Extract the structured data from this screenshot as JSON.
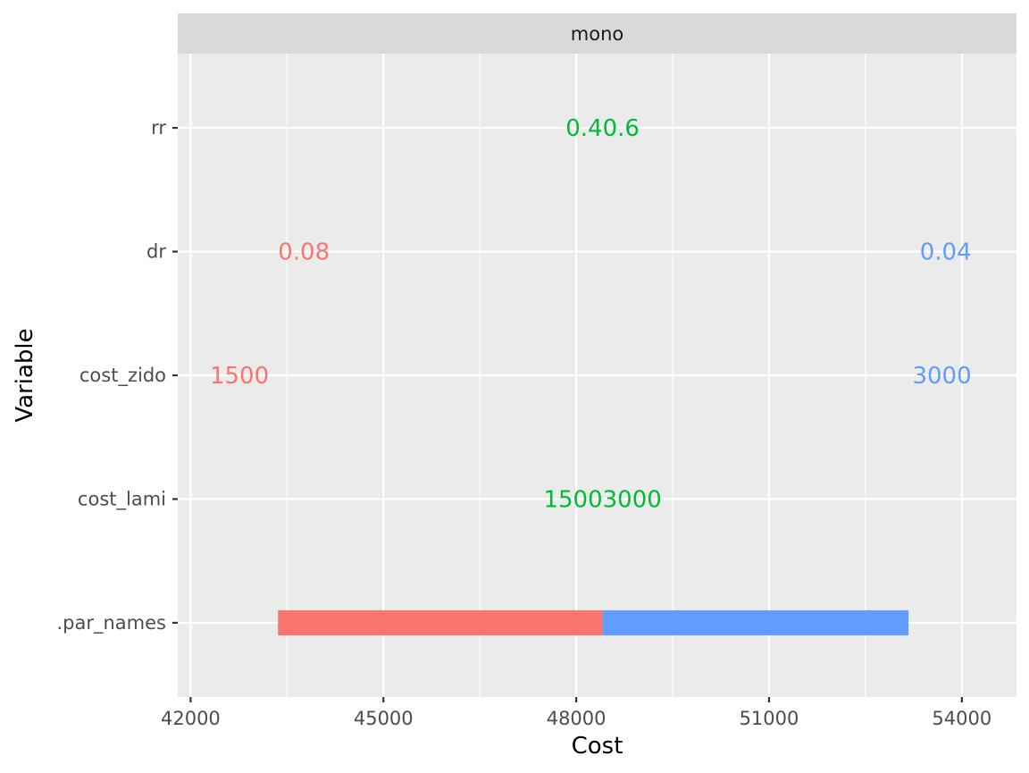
{
  "chart_data": {
    "type": "bar",
    "orientation": "horizontal",
    "facet": "mono",
    "xlabel": "Cost",
    "ylabel": "Variable",
    "xlim": [
      41800,
      54850
    ],
    "x_ticks": [
      42000,
      45000,
      48000,
      51000,
      54000
    ],
    "x_tick_labels": [
      "42000",
      "45000",
      "48000",
      "51000",
      "54000"
    ],
    "categories": [
      ".par_names",
      "cost_lami",
      "cost_zido",
      "dr",
      "rr"
    ],
    "grid": true,
    "legend": "none",
    "baseline": 48410,
    "colors": {
      "low": "#F8766D",
      "high": "#619CFF",
      "same": "#00BA38"
    },
    "bars": [
      {
        "category": ".par_names",
        "from": 43360,
        "to": 48410,
        "color": "#F8766D"
      },
      {
        "category": ".par_names",
        "from": 48410,
        "to": 53170,
        "color": "#619CFF"
      }
    ],
    "labels": [
      {
        "category": "rr",
        "text": "0.40.6",
        "x": 48410,
        "color": "#00BA38"
      },
      {
        "category": "dr",
        "text": "0.08",
        "x": 43360,
        "color": "#F8766D",
        "anchor": "start"
      },
      {
        "category": "dr",
        "text": "0.04",
        "x": 54150,
        "color": "#619CFF",
        "anchor": "end"
      },
      {
        "category": "cost_zido",
        "text": "1500",
        "x": 42300,
        "color": "#F8766D",
        "anchor": "start"
      },
      {
        "category": "cost_zido",
        "text": "3000",
        "x": 54150,
        "color": "#619CFF",
        "anchor": "end"
      },
      {
        "category": "cost_lami",
        "text": "15003000",
        "x": 48410,
        "color": "#00BA38"
      }
    ]
  }
}
